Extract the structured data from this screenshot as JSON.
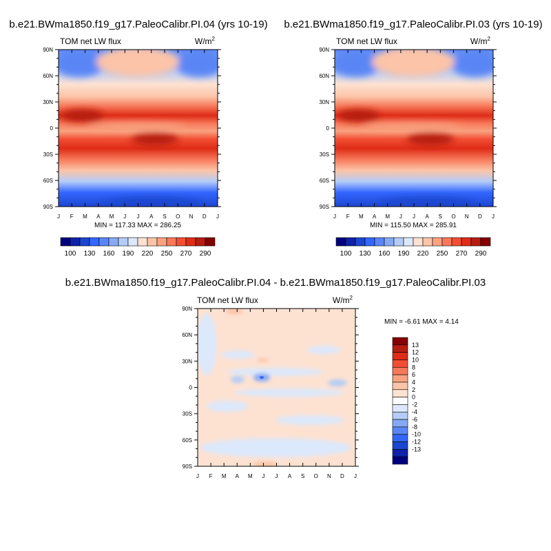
{
  "figure": {
    "panel_a_title": "b.e21.BWma1850.f19_g17.PaleoCalibr.PI.04 (yrs 10-19)",
    "panel_b_title": "b.e21.BWma1850.f19_g17.PaleoCalibr.PI.03 (yrs 10-19)",
    "panel_c_title": "b.e21.BWma1850.f19_g17.PaleoCalibr.PI.04 - b.e21.BWma1850.f19_g17.PaleoCalibr.PI.03"
  },
  "chart_data": [
    {
      "type": "heatmap",
      "title": "b.e21.BWma1850.f19_g17.PaleoCalibr.PI.04 (yrs 10-19)",
      "variable": "TOM net LW flux",
      "units": "W/m",
      "units_sup": "2",
      "x_ticks": [
        "J",
        "F",
        "M",
        "A",
        "M",
        "J",
        "J",
        "A",
        "S",
        "O",
        "N",
        "D",
        "J"
      ],
      "y_ticks": [
        "90N",
        "60N",
        "30N",
        "0",
        "30S",
        "60S",
        "90S"
      ],
      "minmax_text": "MIN = 117.33 MAX = 286.25",
      "min": 117.33,
      "max": 286.25,
      "colorbar_labels": [
        "100",
        "130",
        "160",
        "190",
        "220",
        "250",
        "270",
        "290"
      ],
      "palette": [
        "#00007f",
        "#0e23a8",
        "#1c46cf",
        "#3366ff",
        "#5a86f5",
        "#86a9f5",
        "#b4ccf8",
        "#dce8fb",
        "#fde2d2",
        "#fcc4a8",
        "#f9a280",
        "#f7795a",
        "#f24e33",
        "#de2c17",
        "#b61d10",
        "#850000"
      ]
    },
    {
      "type": "heatmap",
      "title": "b.e21.BWma1850.f19_g17.PaleoCalibr.PI.03 (yrs 10-19)",
      "variable": "TOM net LW flux",
      "units": "W/m",
      "units_sup": "2",
      "x_ticks": [
        "J",
        "F",
        "M",
        "A",
        "M",
        "J",
        "J",
        "A",
        "S",
        "O",
        "N",
        "D",
        "J"
      ],
      "y_ticks": [
        "90N",
        "60N",
        "30N",
        "0",
        "30S",
        "60S",
        "90S"
      ],
      "minmax_text": "MIN = 115.50 MAX = 285.91",
      "min": 115.5,
      "max": 285.91,
      "colorbar_labels": [
        "100",
        "130",
        "160",
        "190",
        "220",
        "250",
        "270",
        "290"
      ],
      "palette": [
        "#00007f",
        "#0e23a8",
        "#1c46cf",
        "#3366ff",
        "#5a86f5",
        "#86a9f5",
        "#b4ccf8",
        "#dce8fb",
        "#fde2d2",
        "#fcc4a8",
        "#f9a280",
        "#f7795a",
        "#f24e33",
        "#de2c17",
        "#b61d10",
        "#850000"
      ]
    },
    {
      "type": "heatmap",
      "title": "b.e21.BWma1850.f19_g17.PaleoCalibr.PI.04 - b.e21.BWma1850.f19_g17.PaleoCalibr.PI.03",
      "variable": "TOM net LW flux",
      "units": "W/m",
      "units_sup": "2",
      "x_ticks": [
        "J",
        "F",
        "M",
        "A",
        "M",
        "J",
        "J",
        "A",
        "S",
        "O",
        "N",
        "D",
        "J"
      ],
      "y_ticks": [
        "90N",
        "60N",
        "30N",
        "0",
        "30S",
        "60S",
        "90S"
      ],
      "minmax_text": "MIN =  -6.61 MAX =   4.14",
      "min": -6.61,
      "max": 4.14,
      "colorbar_labels": [
        "13",
        "12",
        "10",
        "8",
        "6",
        "4",
        "2",
        "0",
        "-2",
        "-4",
        "-6",
        "-8",
        "-10",
        "-12",
        "-13"
      ],
      "palette": [
        "#850000",
        "#b61d10",
        "#de2c17",
        "#f24e33",
        "#f7795a",
        "#f9a280",
        "#fcc4a8",
        "#fde2d2",
        "#ffffff",
        "#dce8fb",
        "#b4ccf8",
        "#86a9f5",
        "#5a86f5",
        "#3366ff",
        "#1c46cf",
        "#0e23a8",
        "#00007f"
      ]
    }
  ]
}
